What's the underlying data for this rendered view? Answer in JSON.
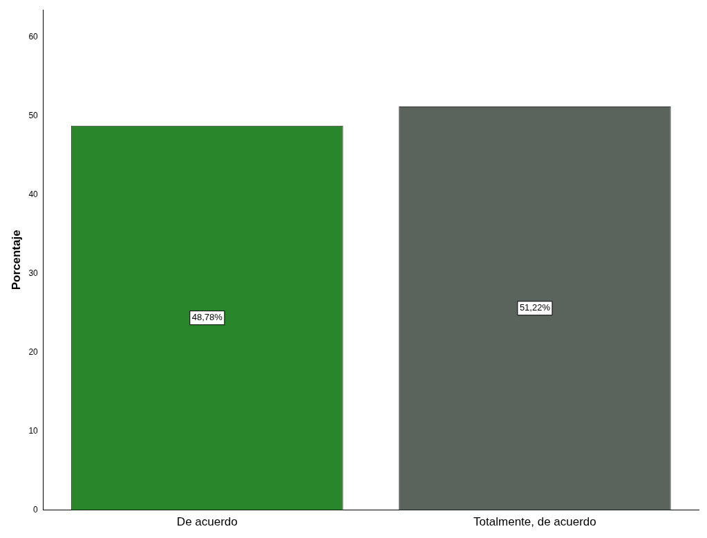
{
  "chart_data": {
    "type": "bar",
    "ylabel": "Porcentaje",
    "categories": [
      "De acuerdo",
      "Totalmente, de acuerdo"
    ],
    "values": [
      48.78,
      51.22
    ],
    "colors": [
      "#2a862a",
      "#5a635c"
    ],
    "value_labels": [
      "48,78%",
      "51,22%"
    ],
    "ylim": [
      0,
      63.5
    ],
    "yticks": [
      0,
      10,
      20,
      30,
      40,
      50,
      60
    ],
    "grid": false,
    "legend": false
  }
}
